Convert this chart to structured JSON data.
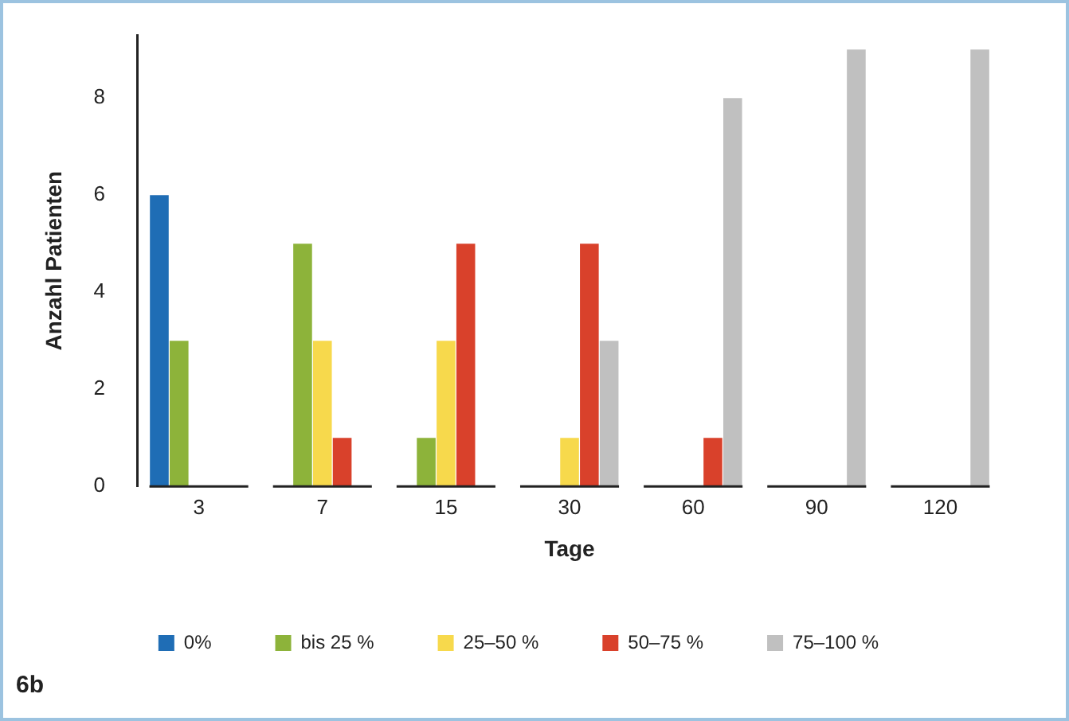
{
  "chart_data": {
    "type": "bar",
    "xlabel": "Tage",
    "ylabel": "Anzahl Patienten",
    "categories": [
      "3",
      "7",
      "15",
      "30",
      "60",
      "90",
      "120"
    ],
    "series": [
      {
        "name": "0%",
        "color": "#1f6db5",
        "values": [
          6,
          0,
          0,
          0,
          0,
          0,
          0
        ]
      },
      {
        "name": "bis 25 %",
        "color": "#8db33a",
        "values": [
          3,
          5,
          1,
          0,
          0,
          0,
          0
        ]
      },
      {
        "name": "25–50 %",
        "color": "#f7d94c",
        "values": [
          0,
          3,
          3,
          1,
          0,
          0,
          0
        ]
      },
      {
        "name": "50–75 %",
        "color": "#d9412b",
        "values": [
          0,
          1,
          5,
          5,
          1,
          0,
          0
        ]
      },
      {
        "name": "75–100 %",
        "color": "#c0c0c0",
        "values": [
          0,
          0,
          0,
          3,
          8,
          9,
          9
        ]
      }
    ],
    "ylim": [
      0,
      9.3
    ],
    "yticks": [
      0,
      2,
      4,
      6,
      8
    ],
    "grid": false,
    "legend": "bottom",
    "annotations": [
      "6b"
    ]
  }
}
